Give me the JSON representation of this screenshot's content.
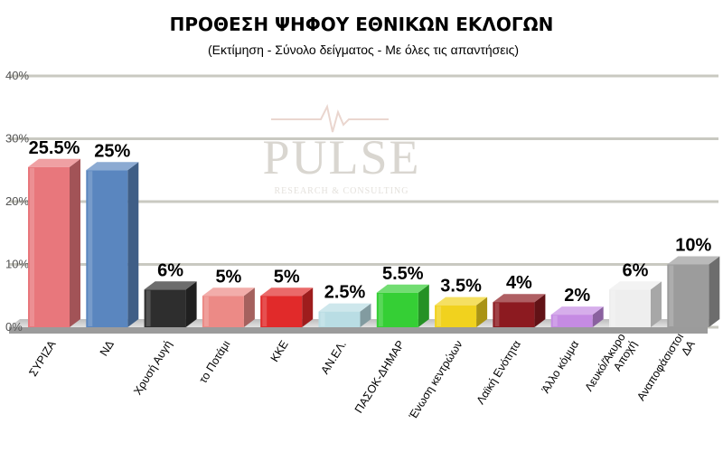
{
  "chart_data": {
    "type": "bar",
    "title": "ΠΡΟΘΕΣΗ ΨΗΦΟΥ ΕΘΝΙΚΩΝ ΕΚΛΟΓΩΝ",
    "subtitle": "(Εκτίμηση - Σύνολο δείγματος - Με όλες τις απαντήσεις)",
    "ylim": [
      0,
      40
    ],
    "yticks": [
      "0%",
      "10%",
      "20%",
      "30%",
      "40%"
    ],
    "ytick_values": [
      0,
      10,
      20,
      30,
      40
    ],
    "grid": true,
    "categories": [
      [
        "ΣΥΡΙΖΑ"
      ],
      [
        "ΝΔ"
      ],
      [
        "Χρυσή Αυγή"
      ],
      [
        "το Ποτάμι"
      ],
      [
        "ΚΚΕ"
      ],
      [
        "ΑΝ.ΕΛ."
      ],
      [
        "ΠΑΣΟΚ-ΔΗΜΑΡ"
      ],
      [
        "Ένωση κεντρώων"
      ],
      [
        "Λαϊκή Ενότητα"
      ],
      [
        "Άλλο κόμμα"
      ],
      [
        "Λευκό/Άκυρο",
        "Αποχή"
      ],
      [
        "Αναποφάσιστοι",
        "ΔΑ"
      ]
    ],
    "values": [
      25.5,
      25,
      6,
      5,
      5,
      2.5,
      5.5,
      3.5,
      4,
      2,
      6,
      10
    ],
    "data_labels": [
      "25.5%",
      "25%",
      "6%",
      "5%",
      "5%",
      "2.5%",
      "5.5%",
      "3.5%",
      "4%",
      "2%",
      "6%",
      "10%"
    ],
    "colors": [
      "#e8777c",
      "#5a86bf",
      "#2e2e2e",
      "#ec8a86",
      "#e12a2a",
      "#b9dde4",
      "#35cf35",
      "#f1d21e",
      "#8c1a20",
      "#c58be3",
      "#eeeeee",
      "#9c9c9c"
    ]
  },
  "watermark": {
    "main": "PULSE",
    "sub": "RESEARCH & CONSULTING"
  }
}
